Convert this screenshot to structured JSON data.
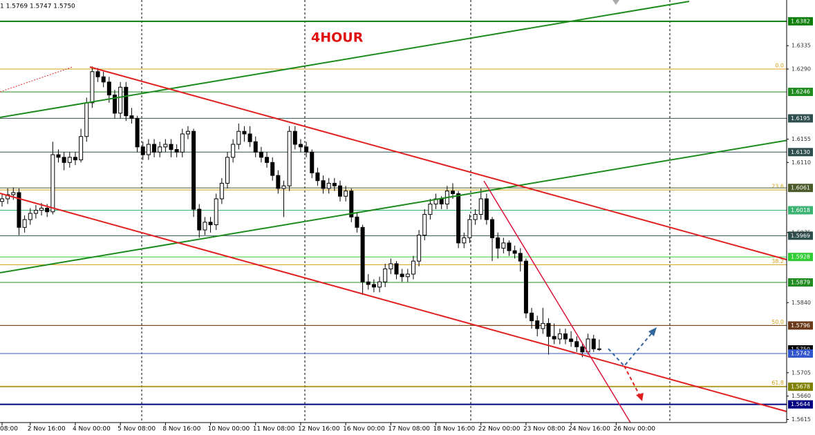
{
  "chart_data": {
    "type": "candlestick",
    "title": "4HOUR",
    "header": "1 1.5769 1.5747 1.5750",
    "ylim": [
      1.5605,
      1.6423
    ],
    "yticks": [
      {
        "value": 1.6335,
        "label": "1.6335"
      },
      {
        "value": 1.629,
        "label": "1.6290"
      },
      {
        "value": 1.6155,
        "label": "1.6155"
      },
      {
        "value": 1.611,
        "label": "1.6110"
      },
      {
        "value": 1.5975,
        "label": "1.5975"
      },
      {
        "value": 1.584,
        "label": "1.5840"
      },
      {
        "value": 1.5705,
        "label": "1.5705"
      },
      {
        "value": 1.566,
        "label": "1.5660"
      },
      {
        "value": 1.5615,
        "label": "1.5615"
      }
    ],
    "levels": [
      {
        "value": 1.6382,
        "label": "1.6382",
        "color": "#0a7d0a"
      },
      {
        "value": 1.6246,
        "label": "1.6246",
        "color": "#1e8b1e"
      },
      {
        "value": 1.6195,
        "label": "1.6195",
        "color": "#2f4f4f"
      },
      {
        "value": 1.613,
        "label": "1.6130",
        "color": "#2f4f4f"
      },
      {
        "value": 1.6061,
        "label": "1.6061",
        "color": "#4a5a2a"
      },
      {
        "value": 1.6018,
        "label": "1.6018",
        "color": "#3cb371"
      },
      {
        "value": 1.5969,
        "label": "1.5969",
        "color": "#2f4f4f"
      },
      {
        "value": 1.5928,
        "label": "1.5928",
        "color": "#32cd32"
      },
      {
        "value": 1.5879,
        "label": "1.5879",
        "color": "#228b22"
      },
      {
        "value": 1.5796,
        "label": "1.5796",
        "color": "#6b3a1a"
      },
      {
        "value": 1.575,
        "label": "1.5750",
        "color": "#000000"
      },
      {
        "value": 1.5742,
        "label": "1.5742",
        "color": "#3355cc"
      },
      {
        "value": 1.5678,
        "label": "1.5678",
        "color": "#808000"
      },
      {
        "value": 1.5644,
        "label": "1.5644",
        "color": "#000080"
      }
    ],
    "fib_color": "#d4a017",
    "fib_levels": [
      {
        "value": 1.629,
        "label": "0.0"
      },
      {
        "value": 1.6057,
        "label": "23.6"
      },
      {
        "value": 1.5913,
        "label": "38.2"
      },
      {
        "value": 1.5796,
        "label": "50.0"
      },
      {
        "value": 1.5679,
        "label": "61.8"
      }
    ],
    "categories": [
      "08:00",
      null,
      null,
      null,
      null,
      "2 Nov 16:00",
      null,
      null,
      null,
      null,
      null,
      null,
      null,
      "4 Nov 00:00",
      null,
      null,
      null,
      null,
      null,
      null,
      null,
      "5 Nov 08:00",
      null,
      null,
      null,
      null,
      null,
      null,
      null,
      "8 Nov 16:00",
      null,
      null,
      null,
      null,
      null,
      null,
      null,
      "10 Nov 00:00",
      null,
      null,
      null,
      null,
      null,
      null,
      null,
      "11 Nov 08:00",
      null,
      null,
      null,
      null,
      null,
      null,
      null,
      "12 Nov 16:00",
      null,
      null,
      null,
      null,
      null,
      null,
      null,
      "16 Nov 00:00",
      null,
      null,
      null,
      null,
      null,
      null,
      null,
      "17 Nov 08:00",
      null,
      null,
      null,
      null,
      null,
      null,
      null,
      "18 Nov 16:00",
      null,
      null,
      null,
      null,
      null,
      null,
      null,
      "22 Nov 00:00",
      null,
      null,
      null,
      null,
      null,
      null,
      null,
      "23 Nov 08:00",
      null,
      null,
      null,
      null,
      null,
      null,
      null,
      "24 Nov 16:00",
      null,
      null,
      null,
      null,
      null,
      null,
      null,
      "26 Nov 00:00"
    ],
    "ohlc": [
      [
        1.6035,
        1.605,
        1.6025,
        1.604
      ],
      [
        1.604,
        1.606,
        1.603,
        1.6048
      ],
      [
        1.6048,
        1.6062,
        1.6038,
        1.6052
      ],
      [
        1.6052,
        1.606,
        1.597,
        1.5985
      ],
      [
        1.5985,
        1.6008,
        1.5975,
        1.6
      ],
      [
        1.6,
        1.6022,
        1.599,
        1.6012
      ],
      [
        1.6012,
        1.6028,
        1.6002,
        1.6018
      ],
      [
        1.6018,
        1.6032,
        1.6008,
        1.6022
      ],
      [
        1.6022,
        1.603,
        1.6005,
        1.6015
      ],
      [
        1.6015,
        1.615,
        1.601,
        1.6125
      ],
      [
        1.6125,
        1.6135,
        1.611,
        1.612
      ],
      [
        1.612,
        1.613,
        1.6095,
        1.611
      ],
      [
        1.611,
        1.613,
        1.61,
        1.612
      ],
      [
        1.612,
        1.613,
        1.6105,
        1.6115
      ],
      [
        1.6115,
        1.6175,
        1.611,
        1.616
      ],
      [
        1.616,
        1.6235,
        1.615,
        1.6225
      ],
      [
        1.6225,
        1.6295,
        1.6215,
        1.6285
      ],
      [
        1.6285,
        1.6292,
        1.6265,
        1.6275
      ],
      [
        1.6275,
        1.6285,
        1.6255,
        1.6265
      ],
      [
        1.6265,
        1.6275,
        1.6225,
        1.624
      ],
      [
        1.624,
        1.625,
        1.6195,
        1.6205
      ],
      [
        1.6205,
        1.6265,
        1.6195,
        1.6255
      ],
      [
        1.6255,
        1.6265,
        1.619,
        1.62
      ],
      [
        1.62,
        1.6215,
        1.6185,
        1.6195
      ],
      [
        1.6195,
        1.62,
        1.613,
        1.614
      ],
      [
        1.614,
        1.615,
        1.6115,
        1.6125
      ],
      [
        1.6125,
        1.6155,
        1.6115,
        1.6145
      ],
      [
        1.6145,
        1.6155,
        1.612,
        1.613
      ],
      [
        1.613,
        1.615,
        1.612,
        1.614
      ],
      [
        1.614,
        1.6155,
        1.613,
        1.6145
      ],
      [
        1.6145,
        1.6155,
        1.612,
        1.6135
      ],
      [
        1.6135,
        1.6145,
        1.612,
        1.613
      ],
      [
        1.613,
        1.6175,
        1.612,
        1.6165
      ],
      [
        1.6165,
        1.618,
        1.6155,
        1.617
      ],
      [
        1.617,
        1.6175,
        1.6005,
        1.602
      ],
      [
        1.602,
        1.603,
        1.5965,
        1.598
      ],
      [
        1.598,
        1.6005,
        1.597,
        1.5995
      ],
      [
        1.5995,
        1.6005,
        1.5975,
        1.599
      ],
      [
        1.599,
        1.605,
        1.598,
        1.604
      ],
      [
        1.604,
        1.608,
        1.603,
        1.607
      ],
      [
        1.607,
        1.613,
        1.606,
        1.612
      ],
      [
        1.612,
        1.6155,
        1.611,
        1.6145
      ],
      [
        1.6145,
        1.6185,
        1.6135,
        1.617
      ],
      [
        1.617,
        1.618,
        1.615,
        1.6165
      ],
      [
        1.6165,
        1.618,
        1.614,
        1.615
      ],
      [
        1.615,
        1.616,
        1.612,
        1.613
      ],
      [
        1.613,
        1.614,
        1.611,
        1.612
      ],
      [
        1.612,
        1.613,
        1.61,
        1.611
      ],
      [
        1.611,
        1.612,
        1.6075,
        1.6085
      ],
      [
        1.6085,
        1.6095,
        1.605,
        1.606
      ],
      [
        1.606,
        1.6075,
        1.6005,
        1.6065
      ],
      [
        1.6065,
        1.618,
        1.6055,
        1.617
      ],
      [
        1.617,
        1.618,
        1.6135,
        1.6145
      ],
      [
        1.6145,
        1.6155,
        1.613,
        1.614
      ],
      [
        1.614,
        1.615,
        1.612,
        1.613
      ],
      [
        1.613,
        1.6135,
        1.608,
        1.609
      ],
      [
        1.609,
        1.61,
        1.6065,
        1.6075
      ],
      [
        1.6075,
        1.6085,
        1.605,
        1.606
      ],
      [
        1.606,
        1.608,
        1.605,
        1.607
      ],
      [
        1.607,
        1.608,
        1.6055,
        1.6065
      ],
      [
        1.6065,
        1.6075,
        1.6035,
        1.6045
      ],
      [
        1.6045,
        1.6065,
        1.6035,
        1.6055
      ],
      [
        1.6055,
        1.606,
        1.5995,
        1.6005
      ],
      [
        1.6005,
        1.6015,
        1.5975,
        1.5985
      ],
      [
        1.5985,
        1.599,
        1.5855,
        1.588
      ],
      [
        1.588,
        1.5895,
        1.5865,
        1.5875
      ],
      [
        1.5875,
        1.5885,
        1.586,
        1.587
      ],
      [
        1.587,
        1.589,
        1.586,
        1.588
      ],
      [
        1.588,
        1.5915,
        1.587,
        1.5905
      ],
      [
        1.5905,
        1.5925,
        1.5895,
        1.5915
      ],
      [
        1.5915,
        1.592,
        1.5885,
        1.5895
      ],
      [
        1.5895,
        1.5905,
        1.588,
        1.589
      ],
      [
        1.589,
        1.5905,
        1.588,
        1.5895
      ],
      [
        1.5895,
        1.593,
        1.5885,
        1.592
      ],
      [
        1.592,
        1.598,
        1.591,
        1.597
      ],
      [
        1.597,
        1.602,
        1.596,
        1.601
      ],
      [
        1.601,
        1.604,
        1.6,
        1.603
      ],
      [
        1.603,
        1.605,
        1.602,
        1.604
      ],
      [
        1.604,
        1.6045,
        1.602,
        1.603
      ],
      [
        1.603,
        1.6065,
        1.602,
        1.6055
      ],
      [
        1.6055,
        1.607,
        1.604,
        1.605
      ],
      [
        1.605,
        1.6055,
        1.5945,
        1.5955
      ],
      [
        1.5955,
        1.5975,
        1.5945,
        1.5965
      ],
      [
        1.5965,
        1.601,
        1.5955,
        1.6
      ],
      [
        1.6,
        1.602,
        1.599,
        1.601
      ],
      [
        1.601,
        1.606,
        1.6,
        1.604
      ],
      [
        1.604,
        1.605,
        1.599,
        1.6
      ],
      [
        1.6,
        1.6005,
        1.592,
        1.5965
      ],
      [
        1.5965,
        1.5975,
        1.5925,
        1.5945
      ],
      [
        1.5945,
        1.5965,
        1.5935,
        1.5955
      ],
      [
        1.5955,
        1.596,
        1.593,
        1.594
      ],
      [
        1.594,
        1.595,
        1.5925,
        1.5935
      ],
      [
        1.5935,
        1.5945,
        1.59,
        1.592
      ],
      [
        1.592,
        1.5925,
        1.581,
        1.582
      ],
      [
        1.582,
        1.583,
        1.579,
        1.5805
      ],
      [
        1.5805,
        1.5815,
        1.5775,
        1.579
      ],
      [
        1.579,
        1.583,
        1.578,
        1.58
      ],
      [
        1.58,
        1.581,
        1.574,
        1.5775
      ],
      [
        1.5775,
        1.58,
        1.576,
        1.577
      ],
      [
        1.577,
        1.579,
        1.576,
        1.578
      ],
      [
        1.578,
        1.579,
        1.576,
        1.577
      ],
      [
        1.577,
        1.5785,
        1.5755,
        1.5765
      ],
      [
        1.5765,
        1.5775,
        1.5745,
        1.5755
      ],
      [
        1.5755,
        1.576,
        1.5735,
        1.5745
      ],
      [
        1.5745,
        1.578,
        1.574,
        1.577
      ],
      [
        1.577,
        1.5778,
        1.5745,
        1.5751
      ],
      [
        1.5751,
        1.5769,
        1.5747,
        1.575
      ],
      null,
      null,
      null
    ]
  }
}
